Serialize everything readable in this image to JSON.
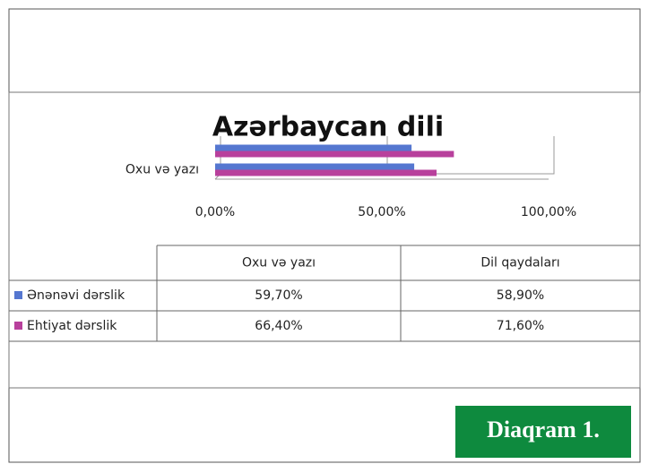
{
  "chart_data": {
    "type": "hbar",
    "title": "Azərbaycan dili",
    "categories": [
      "Oxu və yazı",
      "Dil qaydaları"
    ],
    "axis_category_labels": [
      "Oxu və yazı",
      null
    ],
    "series": [
      {
        "name": "Ənənəvi dərslik",
        "color": "#5577d0",
        "values": [
          59.7,
          58.9
        ],
        "value_labels": [
          "59,70%",
          "58,90%"
        ]
      },
      {
        "name": "Ehtiyat dərslik",
        "color": "#b8409c",
        "values": [
          66.4,
          71.6
        ],
        "value_labels": [
          "66,40%",
          "71,60%"
        ]
      }
    ],
    "xlim": [
      0,
      100
    ],
    "xticks": [
      {
        "value": 0,
        "label": "0,00%"
      },
      {
        "value": 50,
        "label": "50,00%"
      },
      {
        "value": 100,
        "label": "100,00%"
      }
    ],
    "grid": true,
    "annotation": "Diaqram 1."
  }
}
